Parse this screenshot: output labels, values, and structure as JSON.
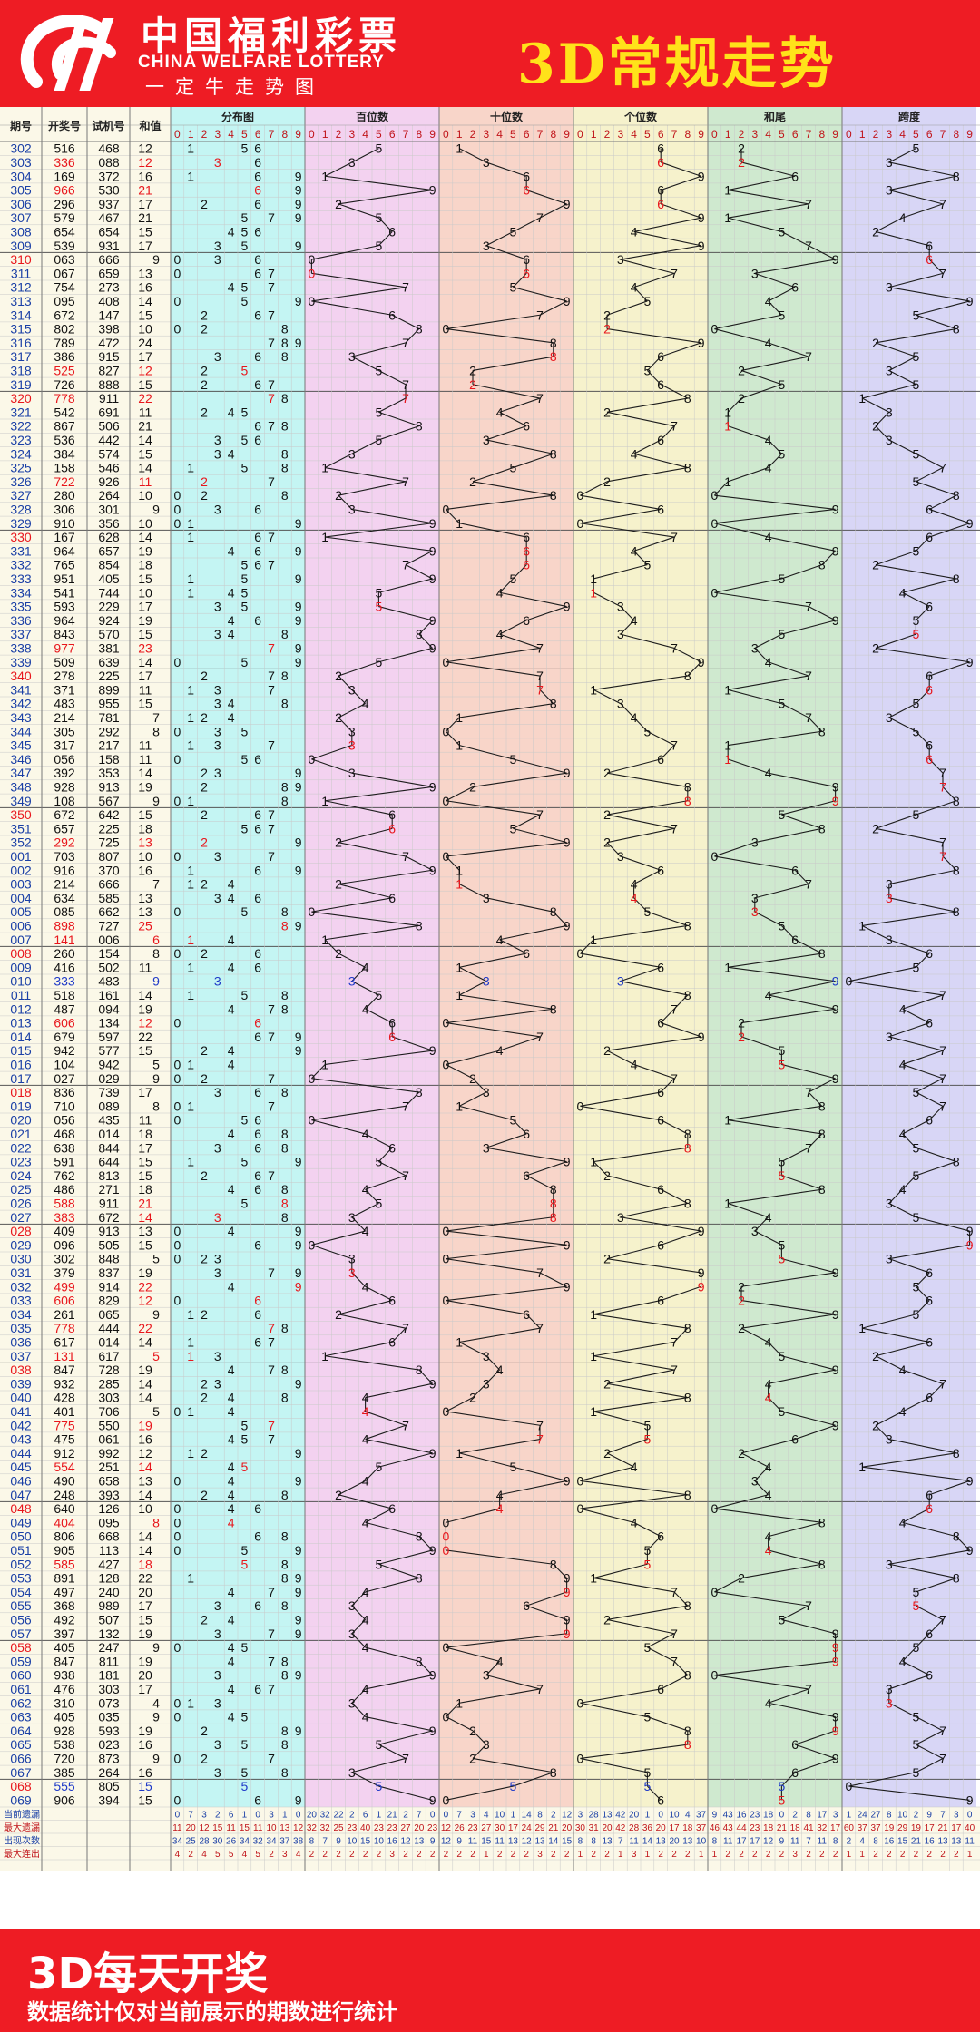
{
  "header": {
    "logo_cn": "中国福利彩票",
    "logo_en": "CHINA WELFARE LOTTERY",
    "logo_slogan": "一定牛走势图",
    "title": "3D常规走势"
  },
  "columns": {
    "period": "期号",
    "draw": "开奖号",
    "trial": "试机号",
    "sum": "和值",
    "groups": [
      "分布图",
      "百位数",
      "十位数",
      "个位数",
      "和尾",
      "跨度"
    ],
    "digits": [
      "0",
      "1",
      "2",
      "3",
      "4",
      "5",
      "6",
      "7",
      "8",
      "9"
    ]
  },
  "colors": {
    "group_bg": [
      "#c4f5f3",
      "#f3d2f0",
      "#f8d5c9",
      "#f6f2cc",
      "#cfe9cf",
      "#d8d6f6"
    ],
    "normal": "#111111",
    "repeat": "#e8161c",
    "blue": "#1f3ac8",
    "header_red": "#ee1c24",
    "title_yellow": "#ffe21a"
  },
  "rows": [
    {
      "period": "302",
      "draw": "516",
      "trial": "468",
      "sum": "12",
      "span": "5"
    },
    {
      "period": "303",
      "draw": "336",
      "trial": "088",
      "sum": "12",
      "span": "3"
    },
    {
      "period": "304",
      "draw": "169",
      "trial": "372",
      "sum": "16",
      "span": "8"
    },
    {
      "period": "305",
      "draw": "966",
      "trial": "530",
      "sum": "21",
      "span": "3"
    },
    {
      "period": "306",
      "draw": "296",
      "trial": "937",
      "sum": "17",
      "span": "7"
    },
    {
      "period": "307",
      "draw": "579",
      "trial": "467",
      "sum": "21",
      "span": "4"
    },
    {
      "period": "308",
      "draw": "654",
      "trial": "654",
      "sum": "15",
      "span": "2"
    },
    {
      "period": "309",
      "draw": "539",
      "trial": "931",
      "sum": "17",
      "span": "6"
    },
    {
      "period": "310",
      "draw": "063",
      "trial": "666",
      "sum": "9",
      "span": "6"
    },
    {
      "period": "311",
      "draw": "067",
      "trial": "659",
      "sum": "13",
      "span": "7"
    },
    {
      "period": "312",
      "draw": "754",
      "trial": "273",
      "sum": "16",
      "span": "3"
    },
    {
      "period": "313",
      "draw": "095",
      "trial": "408",
      "sum": "14",
      "span": "9"
    },
    {
      "period": "314",
      "draw": "672",
      "trial": "147",
      "sum": "15",
      "span": "5"
    },
    {
      "period": "315",
      "draw": "802",
      "trial": "398",
      "sum": "10",
      "span": "8"
    },
    {
      "period": "316",
      "draw": "789",
      "trial": "472",
      "sum": "24",
      "span": "2"
    },
    {
      "period": "317",
      "draw": "386",
      "trial": "915",
      "sum": "17",
      "span": "5"
    },
    {
      "period": "318",
      "draw": "525",
      "trial": "827",
      "sum": "12",
      "span": "3"
    },
    {
      "period": "319",
      "draw": "726",
      "trial": "888",
      "sum": "15",
      "span": "5"
    },
    {
      "period": "320",
      "draw": "778",
      "trial": "911",
      "sum": "22",
      "span": "1"
    },
    {
      "period": "321",
      "draw": "542",
      "trial": "691",
      "sum": "11",
      "span": "3"
    },
    {
      "period": "322",
      "draw": "867",
      "trial": "506",
      "sum": "21",
      "span": "2"
    },
    {
      "period": "323",
      "draw": "536",
      "trial": "442",
      "sum": "14",
      "span": "3"
    },
    {
      "period": "324",
      "draw": "384",
      "trial": "574",
      "sum": "15",
      "span": "5"
    },
    {
      "period": "325",
      "draw": "158",
      "trial": "546",
      "sum": "14",
      "span": "7"
    },
    {
      "period": "326",
      "draw": "722",
      "trial": "926",
      "sum": "11",
      "span": "5"
    },
    {
      "period": "327",
      "draw": "280",
      "trial": "264",
      "sum": "10",
      "span": "8"
    },
    {
      "period": "328",
      "draw": "306",
      "trial": "301",
      "sum": "9",
      "span": "6"
    },
    {
      "period": "329",
      "draw": "910",
      "trial": "356",
      "sum": "10",
      "span": "9"
    },
    {
      "period": "330",
      "draw": "167",
      "trial": "628",
      "sum": "14",
      "span": "6"
    },
    {
      "period": "331",
      "draw": "964",
      "trial": "657",
      "sum": "19",
      "span": "5"
    },
    {
      "period": "332",
      "draw": "765",
      "trial": "854",
      "sum": "18",
      "span": "2"
    },
    {
      "period": "333",
      "draw": "951",
      "trial": "405",
      "sum": "15",
      "span": "8"
    },
    {
      "period": "334",
      "draw": "541",
      "trial": "744",
      "sum": "10",
      "span": "4"
    },
    {
      "period": "335",
      "draw": "593",
      "trial": "229",
      "sum": "17",
      "span": "6"
    },
    {
      "period": "336",
      "draw": "964",
      "trial": "924",
      "sum": "19",
      "span": "5"
    },
    {
      "period": "337",
      "draw": "843",
      "trial": "570",
      "sum": "15",
      "span": "5"
    },
    {
      "period": "338",
      "draw": "977",
      "trial": "381",
      "sum": "23",
      "span": "2"
    },
    {
      "period": "339",
      "draw": "509",
      "trial": "639",
      "sum": "14",
      "span": "9"
    },
    {
      "period": "340",
      "draw": "278",
      "trial": "225",
      "sum": "17",
      "span": "6"
    },
    {
      "period": "341",
      "draw": "371",
      "trial": "899",
      "sum": "11",
      "span": "6"
    },
    {
      "period": "342",
      "draw": "483",
      "trial": "955",
      "sum": "15",
      "span": "5"
    },
    {
      "period": "343",
      "draw": "214",
      "trial": "781",
      "sum": "7",
      "span": "3"
    },
    {
      "period": "344",
      "draw": "305",
      "trial": "292",
      "sum": "8",
      "span": "5"
    },
    {
      "period": "345",
      "draw": "317",
      "trial": "217",
      "sum": "11",
      "span": "6"
    },
    {
      "period": "346",
      "draw": "056",
      "trial": "158",
      "sum": "11",
      "span": "6"
    },
    {
      "period": "347",
      "draw": "392",
      "trial": "353",
      "sum": "14",
      "span": "7"
    },
    {
      "period": "348",
      "draw": "928",
      "trial": "913",
      "sum": "19",
      "span": "7"
    },
    {
      "period": "349",
      "draw": "108",
      "trial": "567",
      "sum": "9",
      "span": "8"
    },
    {
      "period": "350",
      "draw": "672",
      "trial": "642",
      "sum": "15",
      "span": "5"
    },
    {
      "period": "351",
      "draw": "657",
      "trial": "225",
      "sum": "18",
      "span": "2"
    },
    {
      "period": "352",
      "draw": "292",
      "trial": "725",
      "sum": "13",
      "span": "7"
    },
    {
      "period": "001",
      "draw": "703",
      "trial": "807",
      "sum": "10",
      "span": "7"
    },
    {
      "period": "002",
      "draw": "916",
      "trial": "370",
      "sum": "16",
      "span": "8"
    },
    {
      "period": "003",
      "draw": "214",
      "trial": "666",
      "sum": "7",
      "span": "3"
    },
    {
      "period": "004",
      "draw": "634",
      "trial": "585",
      "sum": "13",
      "span": "3"
    },
    {
      "period": "005",
      "draw": "085",
      "trial": "662",
      "sum": "13",
      "span": "8"
    },
    {
      "period": "006",
      "draw": "898",
      "trial": "727",
      "sum": "25",
      "span": "1"
    },
    {
      "period": "007",
      "draw": "141",
      "trial": "006",
      "sum": "6",
      "span": "3"
    },
    {
      "period": "008",
      "draw": "260",
      "trial": "154",
      "sum": "8",
      "span": "6"
    },
    {
      "period": "009",
      "draw": "416",
      "trial": "502",
      "sum": "11",
      "span": "5"
    },
    {
      "period": "010",
      "draw": "333",
      "trial": "483",
      "sum": "9",
      "span": "0"
    },
    {
      "period": "011",
      "draw": "518",
      "trial": "161",
      "sum": "14",
      "span": "7"
    },
    {
      "period": "012",
      "draw": "487",
      "trial": "094",
      "sum": "19",
      "span": "4"
    },
    {
      "period": "013",
      "draw": "606",
      "trial": "134",
      "sum": "12",
      "span": "6"
    },
    {
      "period": "014",
      "draw": "679",
      "trial": "597",
      "sum": "22",
      "span": "3"
    },
    {
      "period": "015",
      "draw": "942",
      "trial": "577",
      "sum": "15",
      "span": "7"
    },
    {
      "period": "016",
      "draw": "104",
      "trial": "942",
      "sum": "5",
      "span": "4"
    },
    {
      "period": "017",
      "draw": "027",
      "trial": "029",
      "sum": "9",
      "span": "7"
    },
    {
      "period": "018",
      "draw": "836",
      "trial": "739",
      "sum": "17",
      "span": "5"
    },
    {
      "period": "019",
      "draw": "710",
      "trial": "089",
      "sum": "8",
      "span": "7"
    },
    {
      "period": "020",
      "draw": "056",
      "trial": "435",
      "sum": "11",
      "span": "6"
    },
    {
      "period": "021",
      "draw": "468",
      "trial": "014",
      "sum": "18",
      "span": "4"
    },
    {
      "period": "022",
      "draw": "638",
      "trial": "844",
      "sum": "17",
      "span": "5"
    },
    {
      "period": "023",
      "draw": "591",
      "trial": "644",
      "sum": "15",
      "span": "8"
    },
    {
      "period": "024",
      "draw": "762",
      "trial": "813",
      "sum": "15",
      "span": "5"
    },
    {
      "period": "025",
      "draw": "486",
      "trial": "271",
      "sum": "18",
      "span": "4"
    },
    {
      "period": "026",
      "draw": "588",
      "trial": "911",
      "sum": "21",
      "span": "3"
    },
    {
      "period": "027",
      "draw": "383",
      "trial": "672",
      "sum": "14",
      "span": "5"
    },
    {
      "period": "028",
      "draw": "409",
      "trial": "913",
      "sum": "13",
      "span": "9"
    },
    {
      "period": "029",
      "draw": "096",
      "trial": "505",
      "sum": "15",
      "span": "9"
    },
    {
      "period": "030",
      "draw": "302",
      "trial": "848",
      "sum": "5",
      "span": "3"
    },
    {
      "period": "031",
      "draw": "379",
      "trial": "837",
      "sum": "19",
      "span": "6"
    },
    {
      "period": "032",
      "draw": "499",
      "trial": "914",
      "sum": "22",
      "span": "5"
    },
    {
      "period": "033",
      "draw": "606",
      "trial": "829",
      "sum": "12",
      "span": "6"
    },
    {
      "period": "034",
      "draw": "261",
      "trial": "065",
      "sum": "9",
      "span": "5"
    },
    {
      "period": "035",
      "draw": "778",
      "trial": "444",
      "sum": "22",
      "span": "1"
    },
    {
      "period": "036",
      "draw": "617",
      "trial": "014",
      "sum": "14",
      "span": "6"
    },
    {
      "period": "037",
      "draw": "131",
      "trial": "617",
      "sum": "5",
      "span": "2"
    },
    {
      "period": "038",
      "draw": "847",
      "trial": "728",
      "sum": "19",
      "span": "4"
    },
    {
      "period": "039",
      "draw": "932",
      "trial": "285",
      "sum": "14",
      "span": "7"
    },
    {
      "period": "040",
      "draw": "428",
      "trial": "303",
      "sum": "14",
      "span": "6"
    },
    {
      "period": "041",
      "draw": "401",
      "trial": "706",
      "sum": "5",
      "span": "4"
    },
    {
      "period": "042",
      "draw": "775",
      "trial": "550",
      "sum": "19",
      "span": "2"
    },
    {
      "period": "043",
      "draw": "475",
      "trial": "061",
      "sum": "16",
      "span": "3"
    },
    {
      "period": "044",
      "draw": "912",
      "trial": "992",
      "sum": "12",
      "span": "8"
    },
    {
      "period": "045",
      "draw": "554",
      "trial": "251",
      "sum": "14",
      "span": "1"
    },
    {
      "period": "046",
      "draw": "490",
      "trial": "658",
      "sum": "13",
      "span": "9"
    },
    {
      "period": "047",
      "draw": "248",
      "trial": "393",
      "sum": "14",
      "span": "6"
    },
    {
      "period": "048",
      "draw": "640",
      "trial": "126",
      "sum": "10",
      "span": "6"
    },
    {
      "period": "049",
      "draw": "404",
      "trial": "095",
      "sum": "8",
      "span": "4"
    },
    {
      "period": "050",
      "draw": "806",
      "trial": "668",
      "sum": "14",
      "span": "8"
    },
    {
      "period": "051",
      "draw": "905",
      "trial": "113",
      "sum": "14",
      "span": "9"
    },
    {
      "period": "052",
      "draw": "585",
      "trial": "427",
      "sum": "18",
      "span": "3"
    },
    {
      "period": "053",
      "draw": "891",
      "trial": "128",
      "sum": "22",
      "span": "8"
    },
    {
      "period": "054",
      "draw": "497",
      "trial": "240",
      "sum": "20",
      "span": "5"
    },
    {
      "period": "055",
      "draw": "368",
      "trial": "989",
      "sum": "17",
      "span": "5"
    },
    {
      "period": "056",
      "draw": "492",
      "trial": "507",
      "sum": "15",
      "span": "7"
    },
    {
      "period": "057",
      "draw": "397",
      "trial": "132",
      "sum": "19",
      "span": "6"
    },
    {
      "period": "058",
      "draw": "405",
      "trial": "247",
      "sum": "9",
      "span": "5"
    },
    {
      "period": "059",
      "draw": "847",
      "trial": "811",
      "sum": "19",
      "span": "4"
    },
    {
      "period": "060",
      "draw": "938",
      "trial": "181",
      "sum": "20",
      "span": "6"
    },
    {
      "period": "061",
      "draw": "476",
      "trial": "303",
      "sum": "17",
      "span": "3"
    },
    {
      "period": "062",
      "draw": "310",
      "trial": "073",
      "sum": "4",
      "span": "3"
    },
    {
      "period": "063",
      "draw": "405",
      "trial": "035",
      "sum": "9",
      "span": "5"
    },
    {
      "period": "064",
      "draw": "928",
      "trial": "593",
      "sum": "19",
      "span": "7"
    },
    {
      "period": "065",
      "draw": "538",
      "trial": "023",
      "sum": "16",
      "span": "5"
    },
    {
      "period": "066",
      "draw": "720",
      "trial": "873",
      "sum": "9",
      "span": "7"
    },
    {
      "period": "067",
      "draw": "385",
      "trial": "264",
      "sum": "16",
      "span": "5"
    },
    {
      "period": "068",
      "draw": "555",
      "trial": "805",
      "sum": "15",
      "span": "0"
    },
    {
      "period": "069",
      "draw": "906",
      "trial": "394",
      "sum": "15",
      "span": "9"
    }
  ],
  "stats": {
    "labels": [
      "当前遗漏",
      "最大遗漏",
      "出现次数",
      "最大连出"
    ],
    "current_missing": [
      [
        "0",
        "7",
        "3",
        "2",
        "6",
        "1",
        "0",
        "3",
        "1",
        "0"
      ],
      [
        "20",
        "32",
        "22",
        "2",
        "6",
        "1",
        "21",
        "2",
        "7",
        "0"
      ],
      [
        "0",
        "7",
        "3",
        "4",
        "10",
        "1",
        "14",
        "8",
        "2",
        "12"
      ],
      [
        "3",
        "28",
        "13",
        "42",
        "20",
        "1",
        "0",
        "10",
        "4",
        "37"
      ],
      [
        "9",
        "43",
        "16",
        "23",
        "18",
        "0",
        "2",
        "8",
        "17",
        "3"
      ],
      [
        "1",
        "24",
        "27",
        "8",
        "10",
        "2",
        "9",
        "7",
        "3",
        "0"
      ]
    ],
    "max_missing": [
      [
        "11",
        "20",
        "12",
        "15",
        "11",
        "15",
        "11",
        "10",
        "13",
        "12"
      ],
      [
        "32",
        "32",
        "25",
        "23",
        "40",
        "23",
        "23",
        "27",
        "20",
        "23"
      ],
      [
        "12",
        "26",
        "23",
        "27",
        "30",
        "17",
        "24",
        "29",
        "21",
        "20"
      ],
      [
        "30",
        "31",
        "20",
        "42",
        "28",
        "36",
        "20",
        "17",
        "18",
        "37"
      ],
      [
        "46",
        "43",
        "44",
        "23",
        "18",
        "21",
        "18",
        "41",
        "32",
        "17"
      ],
      [
        "60",
        "37",
        "37",
        "19",
        "29",
        "19",
        "17",
        "21",
        "17",
        "40"
      ]
    ],
    "occurrences": [
      [
        "34",
        "25",
        "28",
        "30",
        "26",
        "34",
        "32",
        "34",
        "37",
        "38"
      ],
      [
        "8",
        "7",
        "9",
        "10",
        "15",
        "10",
        "16",
        "12",
        "13",
        "9"
      ],
      [
        "12",
        "9",
        "11",
        "15",
        "11",
        "13",
        "12",
        "13",
        "14",
        "15"
      ],
      [
        "8",
        "8",
        "13",
        "7",
        "11",
        "14",
        "13",
        "20",
        "13",
        "10"
      ],
      [
        "8",
        "11",
        "17",
        "17",
        "12",
        "9",
        "11",
        "7",
        "11",
        "8"
      ],
      [
        "2",
        "4",
        "8",
        "16",
        "15",
        "21",
        "16",
        "13",
        "13",
        "11"
      ]
    ],
    "max_consecutive": [
      [
        "4",
        "2",
        "4",
        "5",
        "5",
        "4",
        "5",
        "2",
        "3",
        "4"
      ],
      [
        "2",
        "2",
        "2",
        "2",
        "2",
        "2",
        "3",
        "2",
        "2",
        "2"
      ],
      [
        "2",
        "2",
        "2",
        "1",
        "2",
        "2",
        "2",
        "3",
        "2",
        "2"
      ],
      [
        "1",
        "2",
        "2",
        "1",
        "3",
        "1",
        "2",
        "2",
        "2",
        "1"
      ],
      [
        "1",
        "2",
        "2",
        "2",
        "2",
        "2",
        "3",
        "2",
        "2",
        "2"
      ],
      [
        "1",
        "1",
        "2",
        "2",
        "2",
        "2",
        "2",
        "2",
        "2",
        "1"
      ]
    ]
  },
  "footer": {
    "main": "3D每天开奖",
    "note": "数据统计仅对当前展示的期数进行统计"
  }
}
